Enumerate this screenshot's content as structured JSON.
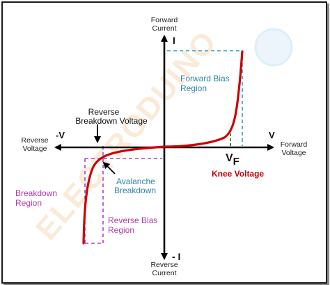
{
  "labels": {
    "forward_current_1": "Forward",
    "forward_current_2": "Current",
    "i_pos": "I",
    "reverse_current_1": "Reverse",
    "reverse_current_2": "Current",
    "i_neg": "- I",
    "reverse_voltage_1": "Reverse",
    "reverse_voltage_2": "Voltage",
    "v_neg": "-V",
    "forward_voltage_1": "Forward",
    "forward_voltage_2": "Voltage",
    "v_pos": "V",
    "vf_main": "V",
    "vf_sub": "F",
    "knee_voltage": "Knee Voltage",
    "forward_bias_1": "Forward Bias",
    "forward_bias_2": "Region",
    "reverse_breakdown_1": "Reverse",
    "reverse_breakdown_2": "Breakdown Voltage",
    "avalanche_1": "Avalanche",
    "avalanche_2": "Breakdown",
    "breakdown_region_1": "Breakdown",
    "breakdown_region_2": "Region",
    "reverse_bias_1": "Reverse Bias",
    "reverse_bias_2": "Region"
  },
  "watermark": {
    "text": "ELECTRODUINO"
  },
  "colors": {
    "axis": "#000000",
    "curve": "#cc0000",
    "forward_bias": "#2a86a6",
    "knee": "#cc0000",
    "avalanche": "#2a86a6",
    "breakdown": "#b03aa8",
    "reverse_bias": "#b03aa8",
    "forward_guide": "#2aa0c0",
    "reverse_guide": "#b040d0",
    "knee_guide": "#2e9a2e",
    "watermark": "#f6d9b8"
  }
}
